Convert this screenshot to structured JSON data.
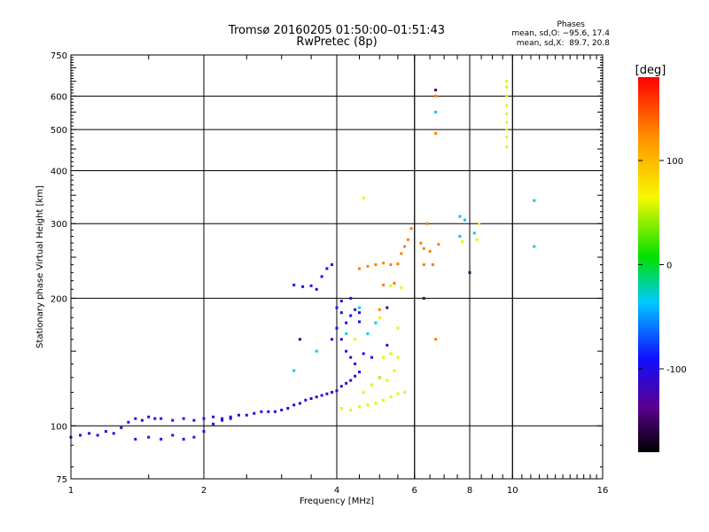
{
  "title_line1": "Tromsø 20160205 01:50:00–01:51:43",
  "title_line2": "RwPretec (8p)",
  "phases": {
    "header": "Phases",
    "o_line": "mean, sd,O: −95.6, 17.4",
    "x_line": "mean, sd,X:  89.7, 20.8"
  },
  "chart_data": {
    "type": "scatter",
    "xlabel": "Frequency [MHz]",
    "ylabel": "Stationary phase Virtual Height [km]",
    "x_scale": "log",
    "y_scale": "log",
    "xlim": [
      1,
      16
    ],
    "ylim": [
      75,
      750
    ],
    "x_ticks": [
      1,
      2,
      4,
      6,
      8,
      10,
      16
    ],
    "y_ticks": [
      75,
      100,
      200,
      300,
      400,
      500,
      600,
      750
    ],
    "x_minor_gridlines": [
      6,
      8,
      10
    ],
    "grid": true,
    "colorbar": {
      "label": "[deg]",
      "ticks": [
        100,
        0,
        -100
      ],
      "range": [
        -180,
        180
      ]
    },
    "series": [
      {
        "color_phase": -100,
        "points": [
          [
            1.0,
            94
          ],
          [
            1.05,
            95
          ],
          [
            1.1,
            96
          ],
          [
            1.15,
            95
          ],
          [
            1.2,
            97
          ],
          [
            1.25,
            96
          ],
          [
            1.3,
            99
          ],
          [
            1.35,
            102
          ],
          [
            1.4,
            104
          ],
          [
            1.45,
            103
          ],
          [
            1.5,
            105
          ],
          [
            1.55,
            104
          ],
          [
            1.6,
            104
          ],
          [
            1.7,
            103
          ],
          [
            1.8,
            104
          ],
          [
            1.9,
            103
          ],
          [
            2.0,
            104
          ],
          [
            2.1,
            105
          ],
          [
            2.2,
            104
          ],
          [
            2.3,
            105
          ],
          [
            2.4,
            106
          ],
          [
            2.5,
            106
          ],
          [
            2.6,
            107
          ],
          [
            2.7,
            108
          ],
          [
            2.8,
            108
          ],
          [
            2.9,
            108
          ],
          [
            3.0,
            109
          ],
          [
            3.1,
            110
          ],
          [
            3.2,
            112
          ],
          [
            3.3,
            113
          ],
          [
            3.4,
            115
          ],
          [
            3.5,
            116
          ],
          [
            3.6,
            117
          ],
          [
            3.7,
            118
          ],
          [
            3.8,
            119
          ],
          [
            3.9,
            120
          ],
          [
            4.0,
            121
          ],
          [
            4.1,
            124
          ],
          [
            4.2,
            126
          ],
          [
            4.3,
            128
          ],
          [
            4.4,
            131
          ],
          [
            4.5,
            134
          ]
        ]
      },
      {
        "color_phase": -110,
        "points": [
          [
            1.4,
            93
          ],
          [
            1.5,
            94
          ],
          [
            1.6,
            93
          ],
          [
            1.7,
            95
          ],
          [
            1.8,
            93
          ],
          [
            1.9,
            94
          ],
          [
            2.0,
            97
          ],
          [
            2.1,
            101
          ],
          [
            2.2,
            103
          ],
          [
            2.3,
            104
          ]
        ]
      },
      {
        "color_phase": -95,
        "points": [
          [
            3.2,
            215
          ],
          [
            3.35,
            213
          ],
          [
            3.5,
            214
          ],
          [
            3.6,
            210
          ],
          [
            3.7,
            225
          ],
          [
            3.8,
            235
          ],
          [
            3.9,
            240
          ],
          [
            4.0,
            190
          ],
          [
            4.1,
            185
          ],
          [
            4.2,
            175
          ],
          [
            4.3,
            182
          ],
          [
            4.4,
            188
          ],
          [
            4.5,
            176
          ],
          [
            4.0,
            170
          ],
          [
            4.1,
            160
          ],
          [
            3.9,
            160
          ],
          [
            4.2,
            150
          ],
          [
            4.3,
            145
          ],
          [
            4.4,
            140
          ],
          [
            4.6,
            148
          ],
          [
            4.8,
            145
          ],
          [
            5.0,
            130
          ],
          [
            5.2,
            155
          ],
          [
            4.1,
            197
          ],
          [
            4.3,
            200
          ],
          [
            4.5,
            185
          ]
        ]
      },
      {
        "color_phase": -30,
        "points": [
          [
            3.2,
            135
          ],
          [
            3.6,
            150
          ],
          [
            4.2,
            165
          ],
          [
            4.5,
            190
          ],
          [
            4.7,
            165
          ],
          [
            4.9,
            175
          ],
          [
            7.6,
            312
          ],
          [
            7.8,
            306
          ],
          [
            7.6,
            280
          ],
          [
            8.2,
            285
          ],
          [
            11.2,
            340
          ],
          [
            11.2,
            265
          ],
          [
            6.7,
            550
          ]
        ]
      },
      {
        "color_phase": 60,
        "points": [
          [
            4.1,
            110
          ],
          [
            4.3,
            109
          ],
          [
            4.5,
            111
          ],
          [
            4.7,
            112
          ],
          [
            4.9,
            113
          ],
          [
            5.1,
            115
          ],
          [
            5.3,
            117
          ],
          [
            5.5,
            119
          ],
          [
            5.7,
            120
          ],
          [
            4.6,
            120
          ],
          [
            4.8,
            125
          ],
          [
            5.0,
            130
          ],
          [
            5.2,
            128
          ],
          [
            5.4,
            135
          ],
          [
            5.1,
            145
          ],
          [
            5.3,
            148
          ],
          [
            5.5,
            145
          ],
          [
            4.4,
            160
          ],
          [
            5.0,
            180
          ],
          [
            5.5,
            170
          ],
          [
            5.3,
            214
          ],
          [
            5.6,
            212
          ],
          [
            9.7,
            455
          ],
          [
            9.7,
            480
          ],
          [
            9.7,
            500
          ],
          [
            9.7,
            520
          ],
          [
            9.7,
            545
          ],
          [
            9.7,
            570
          ],
          [
            9.7,
            600
          ],
          [
            9.7,
            630
          ],
          [
            9.7,
            650
          ],
          [
            7.7,
            272
          ],
          [
            8.3,
            275
          ],
          [
            8.4,
            300
          ],
          [
            4.6,
            345
          ]
        ]
      },
      {
        "color_phase": 130,
        "points": [
          [
            4.5,
            235
          ],
          [
            4.7,
            238
          ],
          [
            4.9,
            240
          ],
          [
            5.1,
            242
          ],
          [
            5.3,
            240
          ],
          [
            5.5,
            241
          ],
          [
            5.6,
            255
          ],
          [
            5.7,
            265
          ],
          [
            5.8,
            275
          ],
          [
            5.9,
            292
          ],
          [
            6.2,
            270
          ],
          [
            6.3,
            262
          ],
          [
            6.4,
            300
          ],
          [
            6.5,
            258
          ],
          [
            6.6,
            240
          ],
          [
            6.3,
            240
          ],
          [
            6.8,
            268
          ],
          [
            5.1,
            215
          ],
          [
            5.4,
            217
          ],
          [
            5.0,
            188
          ],
          [
            6.7,
            600
          ],
          [
            6.7,
            490
          ],
          [
            6.7,
            160
          ]
        ]
      },
      {
        "color_phase": -150,
        "points": [
          [
            6.7,
            620
          ],
          [
            8.0,
            230
          ],
          [
            6.3,
            200
          ],
          [
            5.2,
            190
          ],
          [
            3.3,
            160
          ]
        ]
      }
    ]
  }
}
